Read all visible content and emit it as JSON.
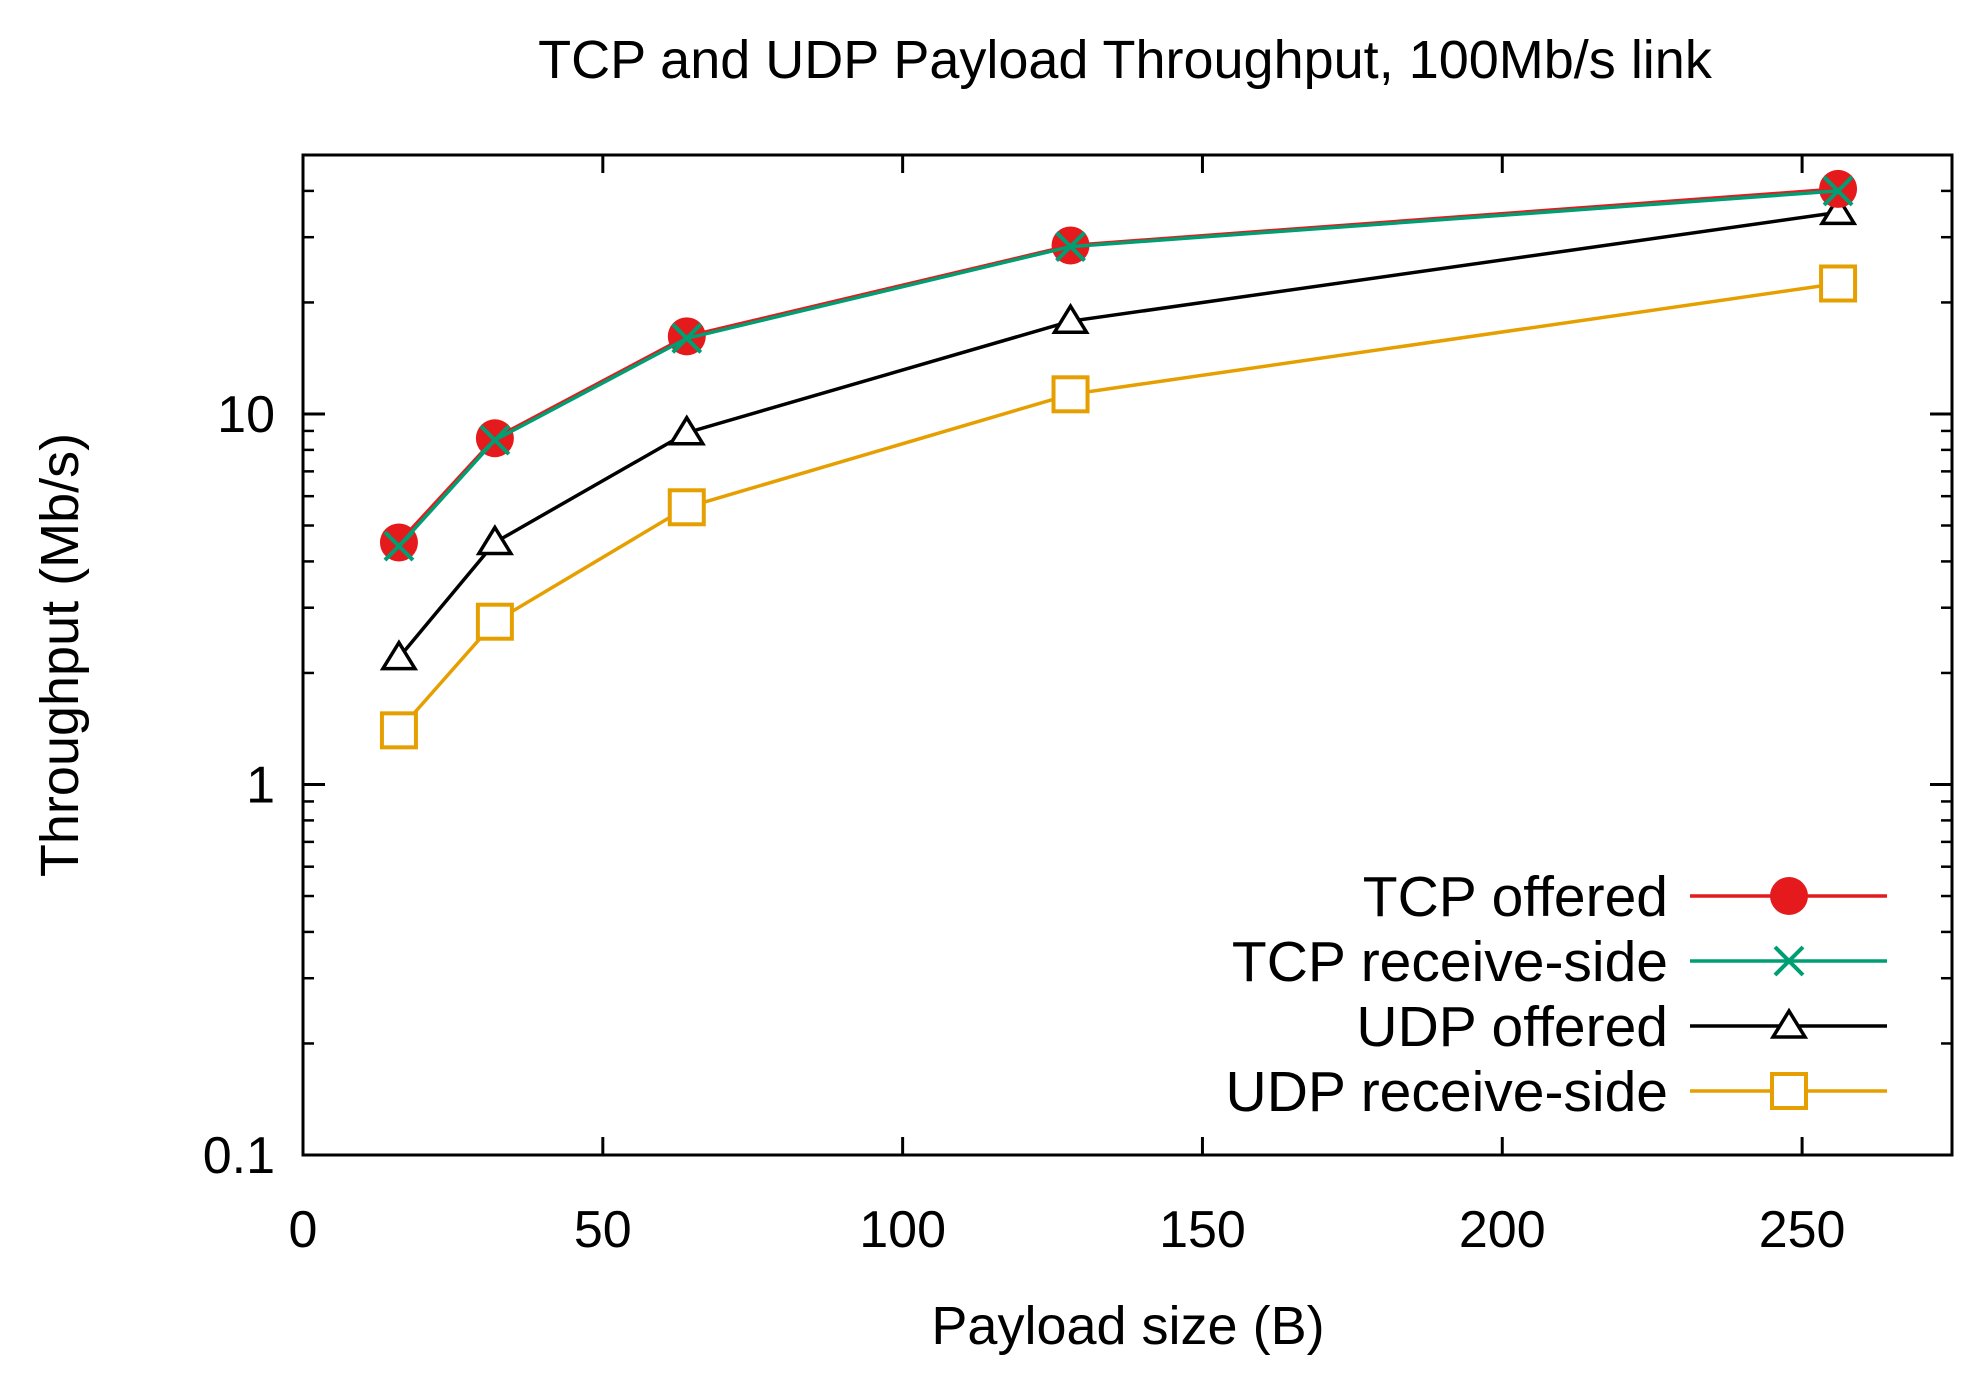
{
  "chart_data": {
    "type": "line",
    "title": "TCP and UDP Payload Throughput, 100Mb/s link",
    "xlabel": "Payload size (B)",
    "ylabel": "Throughput (Mb/s)",
    "xlim": [
      0,
      275
    ],
    "ylim": [
      0.1,
      50
    ],
    "yscale": "log",
    "grid": false,
    "legend_position": "bottom-right",
    "x_ticks": [
      {
        "value": 0,
        "label": "0"
      },
      {
        "value": 50,
        "label": "50"
      },
      {
        "value": 100,
        "label": "100"
      },
      {
        "value": 150,
        "label": "150"
      },
      {
        "value": 200,
        "label": "200"
      },
      {
        "value": 250,
        "label": "250"
      }
    ],
    "y_ticks": [
      {
        "value": 0.1,
        "label": "0.1"
      },
      {
        "value": 1,
        "label": "1"
      },
      {
        "value": 10,
        "label": "10"
      }
    ],
    "x": [
      16,
      32,
      64,
      128,
      256
    ],
    "series": [
      {
        "name": "TCP offered",
        "color": "#e41a1c",
        "marker": "filled-circle",
        "values": [
          4.5,
          8.6,
          16.2,
          28.5,
          40.5
        ]
      },
      {
        "name": "TCP receive-side",
        "color": "#009e73",
        "marker": "cross",
        "values": [
          4.4,
          8.5,
          16.0,
          28.3,
          40.0
        ]
      },
      {
        "name": "UDP offered",
        "color": "#000000",
        "marker": "triangle",
        "values": [
          2.2,
          4.5,
          8.9,
          17.8,
          35.0
        ]
      },
      {
        "name": "UDP receive-side",
        "color": "#e69f00",
        "marker": "square",
        "values": [
          1.4,
          2.75,
          5.6,
          11.3,
          22.5
        ]
      }
    ]
  }
}
